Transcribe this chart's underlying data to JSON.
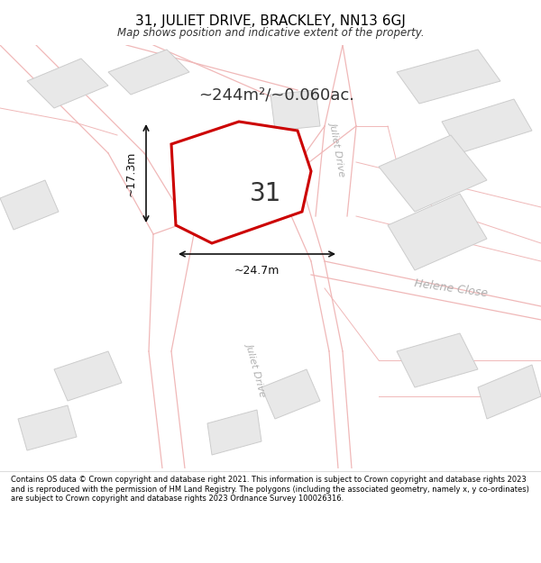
{
  "title_line1": "31, JULIET DRIVE, BRACKLEY, NN13 6GJ",
  "title_line2": "Map shows position and indicative extent of the property.",
  "footer_text": "Contains OS data © Crown copyright and database right 2021. This information is subject to Crown copyright and database rights 2023 and is reproduced with the permission of HM Land Registry. The polygons (including the associated geometry, namely x, y co-ordinates) are subject to Crown copyright and database rights 2023 Ordnance Survey 100026316.",
  "area_text": "~244m²/~0.060ac.",
  "label_31": "31",
  "width_label": "~24.7m",
  "height_label": "~17.3m",
  "street_label_right": "Juliet Drive",
  "street_label_bottom": "Juliet Drive",
  "street_label_helene": "Helene Close",
  "bg_color": "#ffffff",
  "plot_outline_color": "#cc0000",
  "building_fill": "#e8e8e8",
  "building_edge": "#cccccc",
  "road_outline_color": "#f0b8b8",
  "road_fill": "#f7f7f7",
  "road_edge_color": "#e0a0a0",
  "street_text_color": "#b0b0b0",
  "annotation_color": "#111111"
}
